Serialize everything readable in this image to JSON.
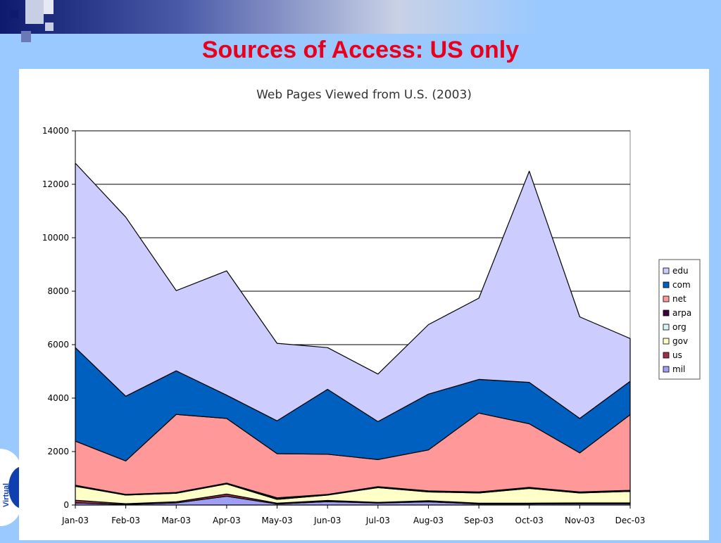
{
  "slide": {
    "title": "Sources of Access: US only",
    "logo_text": "Virtual"
  },
  "colors": {
    "background": "#99c9ff",
    "title": "#e8001c"
  },
  "chart_data": {
    "type": "area",
    "stacked": true,
    "title": "Web Pages Viewed from U.S. (2003)",
    "xlabel": "",
    "ylabel": "",
    "ylim": [
      0,
      14000
    ],
    "yticks": [
      0,
      2000,
      4000,
      6000,
      8000,
      10000,
      12000,
      14000
    ],
    "grid": true,
    "legend_position": "right",
    "categories": [
      "Jan-03",
      "Feb-03",
      "Mar-03",
      "Apr-03",
      "May-03",
      "Jun-03",
      "Jul-03",
      "Aug-03",
      "Sep-03",
      "Oct-03",
      "Nov-03",
      "Dec-03"
    ],
    "series": [
      {
        "name": "mil",
        "color": "#9f9ff5",
        "values": [
          80,
          20,
          80,
          330,
          40,
          130,
          70,
          120,
          40,
          40,
          50,
          50
        ]
      },
      {
        "name": "us",
        "color": "#a0304a",
        "values": [
          100,
          30,
          40,
          80,
          30,
          40,
          30,
          40,
          30,
          30,
          30,
          30
        ]
      },
      {
        "name": "gov",
        "color": "#ffffc8",
        "values": [
          520,
          320,
          320,
          380,
          140,
          200,
          550,
          330,
          380,
          550,
          370,
          430
        ]
      },
      {
        "name": "org",
        "color": "#d8f4f4",
        "values": [
          10,
          10,
          10,
          10,
          40,
          10,
          10,
          10,
          10,
          10,
          10,
          10
        ]
      },
      {
        "name": "arpa",
        "color": "#400040",
        "values": [
          30,
          20,
          20,
          20,
          20,
          20,
          30,
          30,
          30,
          30,
          30,
          30
        ]
      },
      {
        "name": "net",
        "color": "#ff9999",
        "values": [
          1650,
          1250,
          2920,
          2420,
          1650,
          1500,
          1010,
          1530,
          2950,
          2380,
          1460,
          2830
        ]
      },
      {
        "name": "com",
        "color": "#0060c0",
        "values": [
          3500,
          2420,
          1630,
          870,
          1230,
          2430,
          1420,
          2090,
          1260,
          1550,
          1290,
          1250
        ]
      },
      {
        "name": "edu",
        "color": "#ccccff",
        "values": [
          6900,
          6700,
          3000,
          4650,
          2900,
          1560,
          1780,
          2600,
          3040,
          7900,
          3800,
          1600
        ]
      }
    ],
    "legend_order": [
      "edu",
      "com",
      "net",
      "arpa",
      "org",
      "gov",
      "us",
      "mil"
    ]
  }
}
